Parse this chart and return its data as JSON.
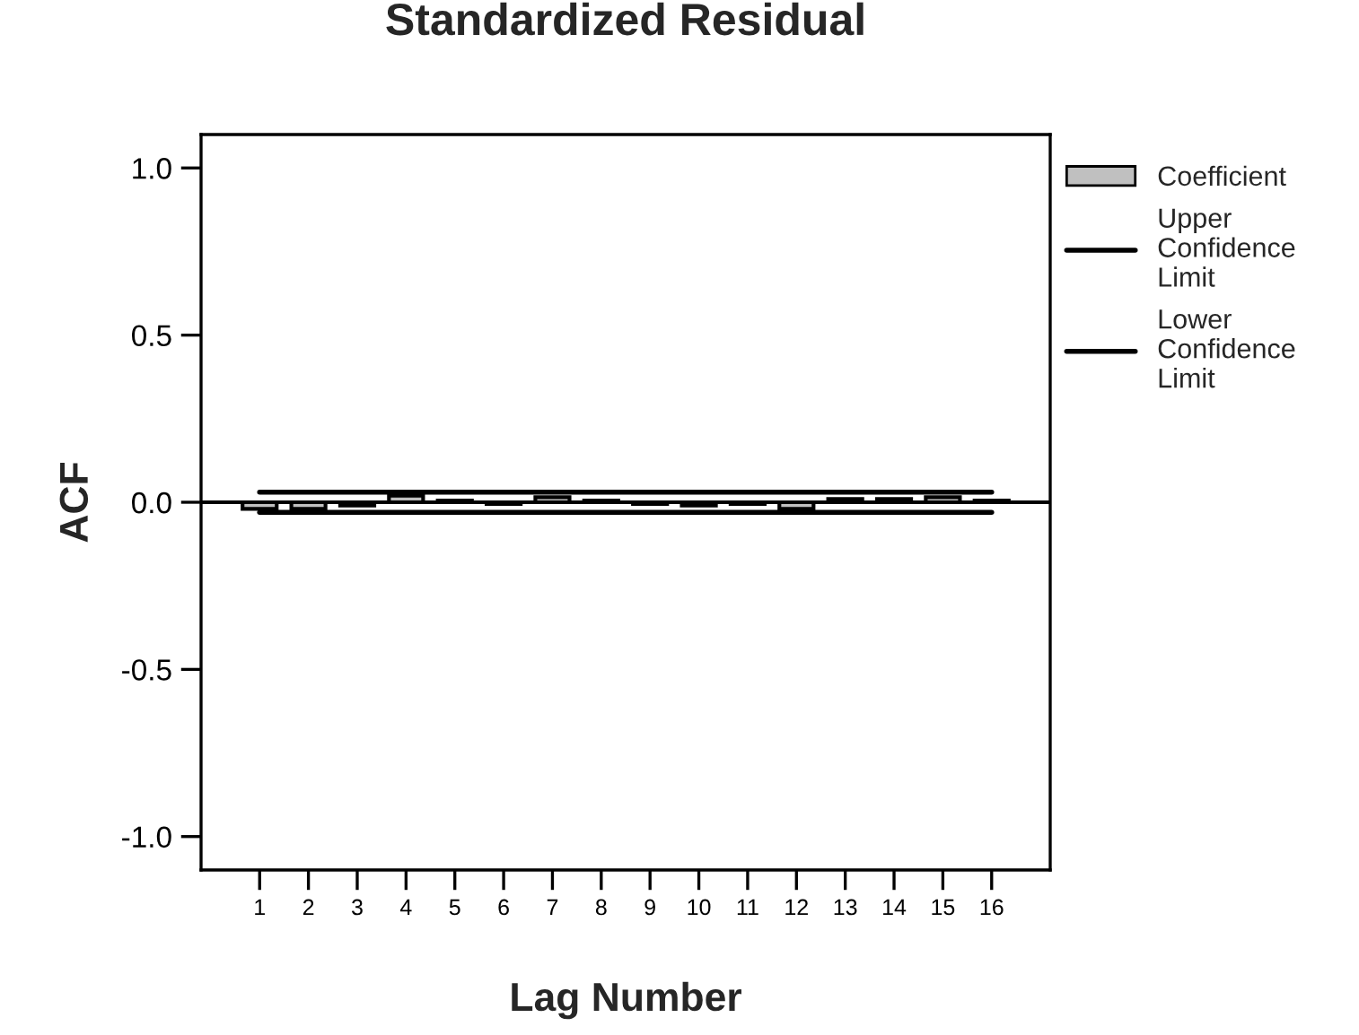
{
  "chart_data": {
    "type": "bar",
    "title": "Standardized Residual",
    "xlabel": "Lag Number",
    "ylabel": "ACF",
    "categories": [
      "1",
      "2",
      "3",
      "4",
      "5",
      "6",
      "7",
      "8",
      "9",
      "10",
      "11",
      "12",
      "13",
      "14",
      "15",
      "16"
    ],
    "series": [
      {
        "name": "Coefficient",
        "color": "#c0c0c0",
        "values": [
          -0.02,
          -0.02,
          -0.01,
          0.02,
          0.005,
          -0.005,
          0.015,
          0.005,
          -0.005,
          -0.01,
          -0.005,
          -0.02,
          0.01,
          0.01,
          0.015,
          0.005
        ]
      },
      {
        "name": "Upper Confidence Limit",
        "type": "line",
        "color": "#000000",
        "values": [
          0.03,
          0.03,
          0.03,
          0.03,
          0.03,
          0.03,
          0.03,
          0.03,
          0.03,
          0.03,
          0.03,
          0.03,
          0.03,
          0.03,
          0.03,
          0.03
        ]
      },
      {
        "name": "Lower Confidence Limit",
        "type": "line",
        "color": "#000000",
        "values": [
          -0.03,
          -0.03,
          -0.03,
          -0.03,
          -0.03,
          -0.03,
          -0.03,
          -0.03,
          -0.03,
          -0.03,
          -0.03,
          -0.03,
          -0.03,
          -0.03,
          -0.03,
          -0.03
        ]
      }
    ],
    "ylim": [
      -1.1,
      1.1
    ],
    "yticks": [
      {
        "value": -1.0,
        "label": "-1.0"
      },
      {
        "value": -0.5,
        "label": "-0.5"
      },
      {
        "value": 0.0,
        "label": "0.0"
      },
      {
        "value": 0.5,
        "label": "0.5"
      },
      {
        "value": 1.0,
        "label": "1.0"
      }
    ],
    "ref_lines": [
      {
        "axis": "y",
        "value": 0,
        "color": "#000000"
      }
    ],
    "grid": false,
    "legend": "right"
  }
}
